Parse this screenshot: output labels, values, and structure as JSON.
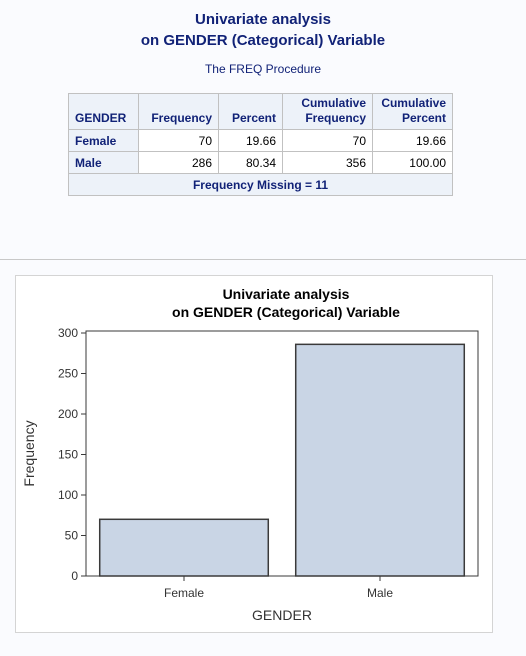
{
  "report": {
    "title_line1": "Univariate analysis",
    "title_line2": "on GENDER (Categorical) Variable",
    "procedure": "The FREQ Procedure"
  },
  "freq_table": {
    "headers": {
      "col0": "GENDER",
      "col1": "Frequency",
      "col2": "Percent",
      "col3_line1": "Cumulative",
      "col3_line2": "Frequency",
      "col4_line1": "Cumulative",
      "col4_line2": "Percent"
    },
    "rows": [
      {
        "label": "Female",
        "frequency": "70",
        "percent": "19.66",
        "cum_frequency": "70",
        "cum_percent": "19.66"
      },
      {
        "label": "Male",
        "frequency": "286",
        "percent": "80.34",
        "cum_frequency": "356",
        "cum_percent": "100.00"
      }
    ],
    "footer": "Frequency Missing = 11"
  },
  "chart_data": {
    "type": "bar",
    "title_line1": "Univariate analysis",
    "title_line2": "on GENDER (Categorical) Variable",
    "categories": [
      "Female",
      "Male"
    ],
    "values": [
      70,
      286
    ],
    "xlabel": "GENDER",
    "ylabel": "Frequency",
    "ylim": [
      0,
      300
    ],
    "yticks": [
      0,
      50,
      100,
      150,
      200,
      250,
      300
    ],
    "grid": false,
    "bar_fill": "#c9d5e5",
    "bar_stroke": "#3a3a3a"
  }
}
